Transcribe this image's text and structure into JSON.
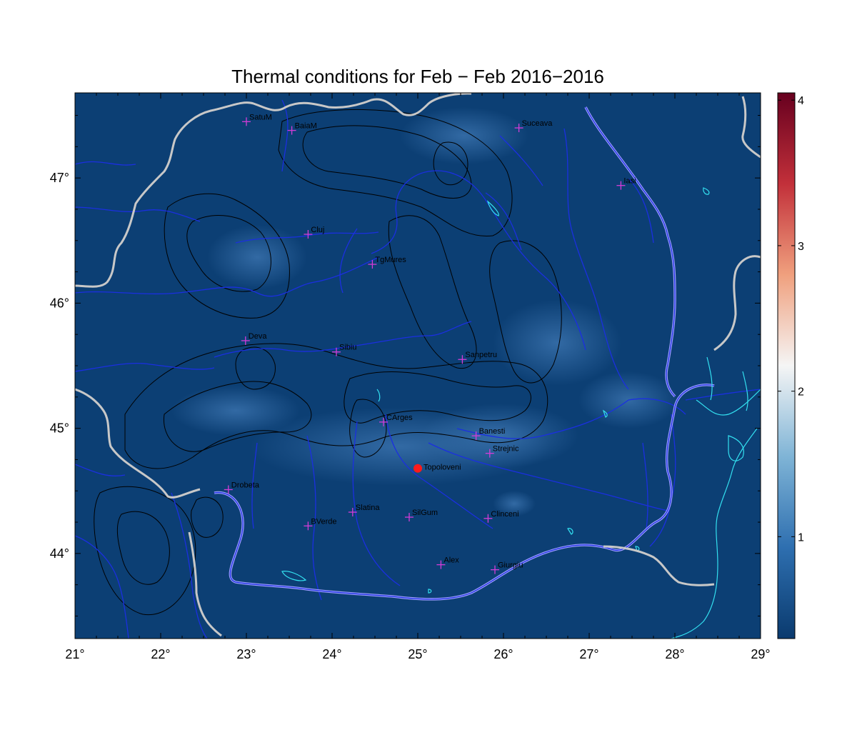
{
  "title": "Thermal conditions for Feb − Feb  2016−2016",
  "map": {
    "lon_range": [
      21,
      29
    ],
    "lat_range": [
      43.32,
      47.68
    ],
    "lon_ticks": [
      21,
      22,
      23,
      24,
      25,
      26,
      27,
      28,
      29
    ],
    "lat_ticks": [
      44,
      45,
      46,
      47
    ],
    "lon_tick_labels": [
      "21°",
      "22°",
      "23°",
      "24°",
      "25°",
      "26°",
      "27°",
      "28°",
      "29°"
    ],
    "lat_tick_labels": [
      "44°",
      "45°",
      "46°",
      "47°"
    ],
    "background_color": "#0c3f74",
    "border_color": "#c8c8c8",
    "river_color": "#1b2fe0",
    "coast_color": "#33e0f0"
  },
  "colorbar": {
    "min": 0.3,
    "max": 4.05,
    "ticks": [
      1,
      2,
      3,
      4
    ],
    "tick_labels": [
      "1",
      "2",
      "3",
      "4"
    ],
    "colors": [
      "#0a3a6e",
      "#2e6fb0",
      "#7fb4d6",
      "#f5f5f5",
      "#f0a07e",
      "#c2303a",
      "#67001f"
    ]
  },
  "stations": [
    {
      "name": "SatuM",
      "lon": 23.0,
      "lat": 47.45
    },
    {
      "name": "BaiaM",
      "lon": 23.53,
      "lat": 47.38
    },
    {
      "name": "Suceava",
      "lon": 26.18,
      "lat": 47.4
    },
    {
      "name": "Iasi",
      "lon": 27.37,
      "lat": 46.94
    },
    {
      "name": "Cluj",
      "lon": 23.72,
      "lat": 46.55
    },
    {
      "name": "TgMures",
      "lon": 24.47,
      "lat": 46.31
    },
    {
      "name": "Deva",
      "lon": 22.99,
      "lat": 45.7
    },
    {
      "name": "Sibiu",
      "lon": 24.05,
      "lat": 45.61
    },
    {
      "name": "Sanpetru",
      "lon": 25.52,
      "lat": 45.55
    },
    {
      "name": "CArges",
      "lon": 24.6,
      "lat": 45.05
    },
    {
      "name": "Banesti",
      "lon": 25.68,
      "lat": 44.94
    },
    {
      "name": "Strejnic",
      "lon": 25.84,
      "lat": 44.8
    },
    {
      "name": "Drobeta",
      "lon": 22.79,
      "lat": 44.51
    },
    {
      "name": "Slatina",
      "lon": 24.24,
      "lat": 44.33
    },
    {
      "name": "SilGum",
      "lon": 24.9,
      "lat": 44.29
    },
    {
      "name": "Clinceni",
      "lon": 25.82,
      "lat": 44.28
    },
    {
      "name": "BVerde",
      "lon": 23.72,
      "lat": 44.22
    },
    {
      "name": "Alex",
      "lon": 25.27,
      "lat": 43.91
    },
    {
      "name": "Giurgiu",
      "lon": 25.9,
      "lat": 43.87
    }
  ],
  "highlight_station": {
    "name": "Topoloveni",
    "lon": 25.0,
    "lat": 44.68,
    "color": "#ff1a1a"
  }
}
